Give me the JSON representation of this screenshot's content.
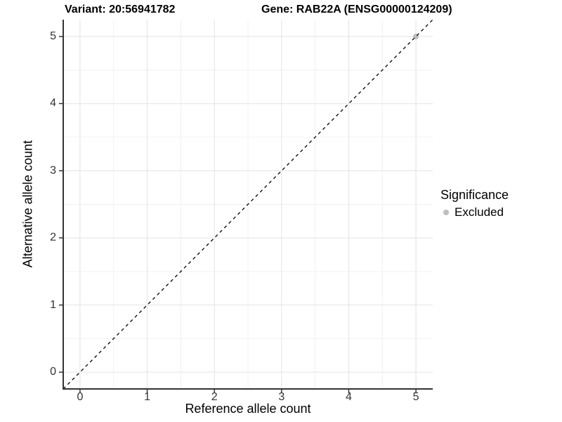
{
  "chart_data": {
    "type": "scatter",
    "title_left": "Variant: 20:56941782",
    "title_right": "Gene: RAB22A (ENSG00000124209)",
    "xlabel": "Reference allele count",
    "ylabel": "Alternative allele count",
    "xlim": [
      -0.25,
      5.25
    ],
    "ylim": [
      -0.25,
      5.25
    ],
    "x_ticks": [
      0,
      1,
      2,
      3,
      4,
      5
    ],
    "y_ticks": [
      0,
      1,
      2,
      3,
      4,
      5
    ],
    "x_minor_ticks": [
      0.5,
      1.5,
      2.5,
      3.5,
      4.5
    ],
    "y_minor_ticks": [
      0.5,
      1.5,
      2.5,
      3.5,
      4.5
    ],
    "grid": "major and minor, light grey on white panel",
    "reference_line": {
      "kind": "identity y=x",
      "style": "dashed",
      "color": "#000000"
    },
    "series": [
      {
        "name": "Excluded",
        "color": "#bebebe",
        "points": [
          {
            "x": 5,
            "y": 5
          }
        ]
      }
    ],
    "legend": {
      "title": "Significance",
      "position": "right",
      "items": [
        {
          "label": "Excluded",
          "color": "#bebebe"
        }
      ]
    }
  },
  "colors": {
    "grid_major": "#e3e3e3",
    "grid_minor": "#f0f0f0",
    "axis_line": "#333333",
    "tick_mark": "#333333",
    "panel_background": "#ffffff"
  }
}
